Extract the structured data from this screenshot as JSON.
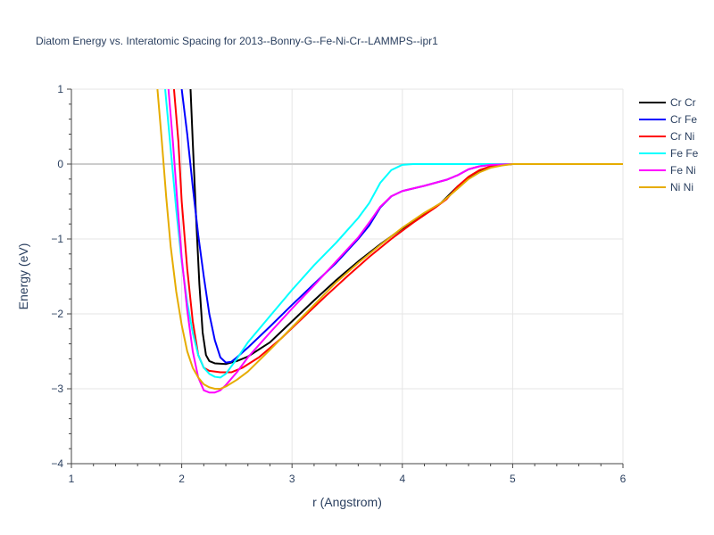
{
  "chart_data": {
    "type": "line",
    "title": "Diatom Energy vs. Interatomic Spacing for 2013--Bonny-G--Fe-Ni-Cr--LAMMPS--ipr1",
    "xlabel": "r (Angstrom)",
    "ylabel": "Energy (eV)",
    "xlim": [
      1,
      6
    ],
    "ylim": [
      -4,
      1
    ],
    "xticks": [
      1,
      2,
      3,
      4,
      5,
      6
    ],
    "yticks": [
      -4,
      -3,
      -2,
      -1,
      0,
      1
    ],
    "xtick_labels": [
      "1",
      "2",
      "3",
      "4",
      "5",
      "6"
    ],
    "ytick_labels": [
      "−4",
      "−3",
      "−2",
      "−1",
      "0",
      "1"
    ],
    "grid": true,
    "legend_position": "top-right",
    "series": [
      {
        "name": "Cr Cr",
        "color": "#000000",
        "points": [
          [
            2.08,
            1.0
          ],
          [
            2.1,
            0.3
          ],
          [
            2.13,
            -0.7
          ],
          [
            2.16,
            -1.6
          ],
          [
            2.19,
            -2.25
          ],
          [
            2.22,
            -2.55
          ],
          [
            2.25,
            -2.63
          ],
          [
            2.3,
            -2.66
          ],
          [
            2.4,
            -2.67
          ],
          [
            2.5,
            -2.63
          ],
          [
            2.6,
            -2.57
          ],
          [
            2.8,
            -2.38
          ],
          [
            3.0,
            -2.1
          ],
          [
            3.2,
            -1.82
          ],
          [
            3.4,
            -1.55
          ],
          [
            3.6,
            -1.3
          ],
          [
            3.8,
            -1.07
          ],
          [
            4.0,
            -0.86
          ],
          [
            4.1,
            -0.76
          ],
          [
            4.2,
            -0.66
          ],
          [
            4.35,
            -0.52
          ],
          [
            4.5,
            -0.3
          ],
          [
            4.6,
            -0.18
          ],
          [
            4.7,
            -0.09
          ],
          [
            4.8,
            -0.04
          ],
          [
            4.9,
            -0.01
          ],
          [
            5.0,
            0.0
          ],
          [
            6.0,
            0.0
          ]
        ]
      },
      {
        "name": "Cr Fe",
        "color": "#0000ff",
        "points": [
          [
            2.0,
            1.0
          ],
          [
            2.05,
            0.4
          ],
          [
            2.1,
            -0.3
          ],
          [
            2.15,
            -0.95
          ],
          [
            2.2,
            -1.5
          ],
          [
            2.25,
            -2.0
          ],
          [
            2.3,
            -2.35
          ],
          [
            2.35,
            -2.58
          ],
          [
            2.4,
            -2.65
          ],
          [
            2.45,
            -2.64
          ],
          [
            2.5,
            -2.58
          ],
          [
            2.6,
            -2.45
          ],
          [
            2.8,
            -2.17
          ],
          [
            3.0,
            -1.88
          ],
          [
            3.2,
            -1.6
          ],
          [
            3.4,
            -1.32
          ],
          [
            3.6,
            -1.0
          ],
          [
            3.7,
            -0.82
          ],
          [
            3.8,
            -0.58
          ],
          [
            3.9,
            -0.43
          ],
          [
            4.0,
            -0.36
          ],
          [
            4.2,
            -0.29
          ],
          [
            4.4,
            -0.21
          ],
          [
            4.5,
            -0.15
          ],
          [
            4.6,
            -0.07
          ],
          [
            4.7,
            -0.03
          ],
          [
            4.8,
            -0.01
          ],
          [
            5.0,
            0.0
          ],
          [
            6.0,
            0.0
          ]
        ]
      },
      {
        "name": "Cr Ni",
        "color": "#ff0000",
        "points": [
          [
            1.93,
            1.0
          ],
          [
            1.97,
            0.3
          ],
          [
            2.0,
            -0.5
          ],
          [
            2.05,
            -1.4
          ],
          [
            2.1,
            -2.1
          ],
          [
            2.15,
            -2.55
          ],
          [
            2.2,
            -2.72
          ],
          [
            2.25,
            -2.76
          ],
          [
            2.35,
            -2.78
          ],
          [
            2.45,
            -2.78
          ],
          [
            2.55,
            -2.72
          ],
          [
            2.7,
            -2.58
          ],
          [
            2.9,
            -2.33
          ],
          [
            3.1,
            -2.05
          ],
          [
            3.3,
            -1.77
          ],
          [
            3.5,
            -1.5
          ],
          [
            3.7,
            -1.24
          ],
          [
            3.9,
            -1.0
          ],
          [
            4.1,
            -0.78
          ],
          [
            4.3,
            -0.58
          ],
          [
            4.4,
            -0.47
          ],
          [
            4.5,
            -0.3
          ],
          [
            4.6,
            -0.17
          ],
          [
            4.7,
            -0.08
          ],
          [
            4.8,
            -0.03
          ],
          [
            4.9,
            -0.01
          ],
          [
            5.0,
            0.0
          ],
          [
            6.0,
            0.0
          ]
        ]
      },
      {
        "name": "Fe Fe",
        "color": "#00ffff",
        "points": [
          [
            1.85,
            1.0
          ],
          [
            1.9,
            0.2
          ],
          [
            1.95,
            -0.6
          ],
          [
            2.0,
            -1.3
          ],
          [
            2.05,
            -1.85
          ],
          [
            2.1,
            -2.25
          ],
          [
            2.15,
            -2.55
          ],
          [
            2.2,
            -2.72
          ],
          [
            2.25,
            -2.8
          ],
          [
            2.3,
            -2.84
          ],
          [
            2.35,
            -2.85
          ],
          [
            2.4,
            -2.8
          ],
          [
            2.5,
            -2.6
          ],
          [
            2.6,
            -2.38
          ],
          [
            2.8,
            -2.03
          ],
          [
            3.0,
            -1.68
          ],
          [
            3.2,
            -1.35
          ],
          [
            3.4,
            -1.05
          ],
          [
            3.6,
            -0.72
          ],
          [
            3.7,
            -0.52
          ],
          [
            3.8,
            -0.25
          ],
          [
            3.9,
            -0.08
          ],
          [
            4.0,
            -0.01
          ],
          [
            4.1,
            0.0
          ],
          [
            6.0,
            0.0
          ]
        ]
      },
      {
        "name": "Fe Ni",
        "color": "#ff00ff",
        "points": [
          [
            1.88,
            1.0
          ],
          [
            1.92,
            0.3
          ],
          [
            1.96,
            -0.5
          ],
          [
            2.0,
            -1.25
          ],
          [
            2.05,
            -1.95
          ],
          [
            2.1,
            -2.5
          ],
          [
            2.15,
            -2.85
          ],
          [
            2.2,
            -3.02
          ],
          [
            2.25,
            -3.05
          ],
          [
            2.3,
            -3.05
          ],
          [
            2.35,
            -3.02
          ],
          [
            2.4,
            -2.95
          ],
          [
            2.5,
            -2.78
          ],
          [
            2.6,
            -2.58
          ],
          [
            2.8,
            -2.25
          ],
          [
            3.0,
            -1.93
          ],
          [
            3.2,
            -1.62
          ],
          [
            3.4,
            -1.3
          ],
          [
            3.6,
            -0.98
          ],
          [
            3.7,
            -0.78
          ],
          [
            3.8,
            -0.57
          ],
          [
            3.9,
            -0.43
          ],
          [
            4.0,
            -0.36
          ],
          [
            4.2,
            -0.29
          ],
          [
            4.4,
            -0.21
          ],
          [
            4.5,
            -0.15
          ],
          [
            4.6,
            -0.07
          ],
          [
            4.7,
            -0.03
          ],
          [
            4.8,
            -0.01
          ],
          [
            5.0,
            0.0
          ],
          [
            6.0,
            0.0
          ]
        ]
      },
      {
        "name": "Ni Ni",
        "color": "#e6ac00",
        "points": [
          [
            1.78,
            1.0
          ],
          [
            1.82,
            0.3
          ],
          [
            1.86,
            -0.45
          ],
          [
            1.9,
            -1.1
          ],
          [
            1.95,
            -1.7
          ],
          [
            2.0,
            -2.15
          ],
          [
            2.05,
            -2.5
          ],
          [
            2.1,
            -2.72
          ],
          [
            2.15,
            -2.85
          ],
          [
            2.2,
            -2.94
          ],
          [
            2.25,
            -2.98
          ],
          [
            2.3,
            -3.0
          ],
          [
            2.35,
            -3.0
          ],
          [
            2.4,
            -2.97
          ],
          [
            2.5,
            -2.88
          ],
          [
            2.6,
            -2.77
          ],
          [
            2.8,
            -2.48
          ],
          [
            3.0,
            -2.18
          ],
          [
            3.2,
            -1.88
          ],
          [
            3.4,
            -1.58
          ],
          [
            3.6,
            -1.32
          ],
          [
            3.8,
            -1.08
          ],
          [
            4.0,
            -0.85
          ],
          [
            4.2,
            -0.65
          ],
          [
            4.35,
            -0.52
          ],
          [
            4.5,
            -0.33
          ],
          [
            4.6,
            -0.2
          ],
          [
            4.7,
            -0.11
          ],
          [
            4.8,
            -0.05
          ],
          [
            4.9,
            -0.02
          ],
          [
            5.0,
            0.0
          ],
          [
            6.0,
            0.0
          ]
        ]
      }
    ]
  }
}
